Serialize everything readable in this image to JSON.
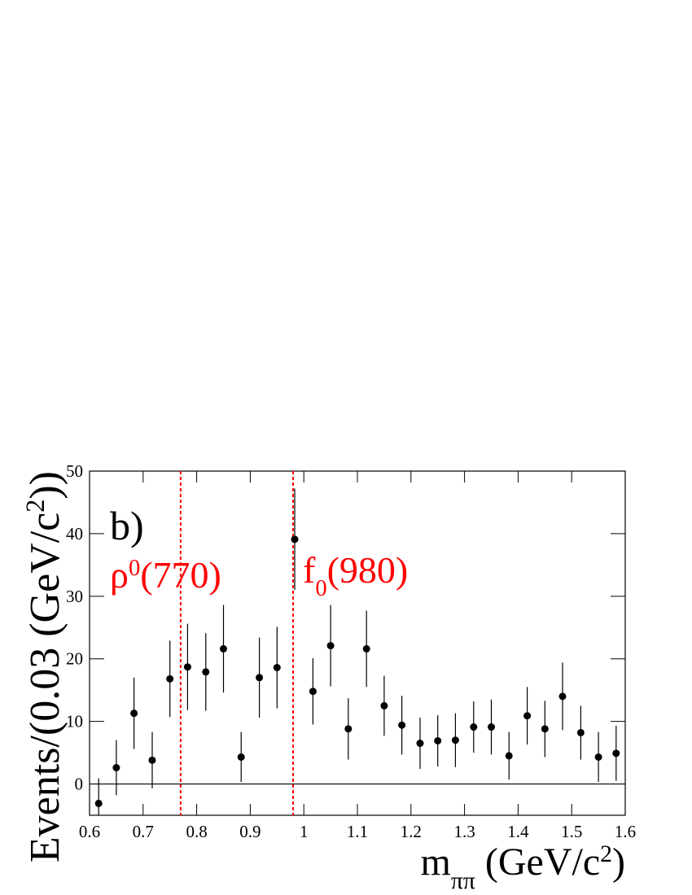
{
  "chart_data": {
    "type": "errorbar",
    "x": [
      0.617,
      0.65,
      0.683,
      0.717,
      0.75,
      0.783,
      0.817,
      0.85,
      0.883,
      0.917,
      0.95,
      0.983,
      1.017,
      1.05,
      1.083,
      1.117,
      1.15,
      1.183,
      1.217,
      1.25,
      1.283,
      1.317,
      1.35,
      1.383,
      1.417,
      1.45,
      1.483,
      1.517,
      1.55,
      1.583
    ],
    "values": [
      -3.1,
      2.6,
      11.3,
      3.8,
      16.8,
      18.7,
      17.9,
      21.6,
      4.3,
      17.0,
      18.6,
      39.1,
      14.8,
      22.1,
      8.8,
      21.6,
      12.5,
      9.4,
      6.5,
      6.9,
      7.0,
      9.1,
      9.1,
      4.5,
      10.9,
      8.8,
      14.0,
      8.2,
      4.3,
      4.9
    ],
    "errors": [
      4.0,
      4.4,
      5.7,
      4.5,
      6.1,
      6.9,
      6.2,
      7.0,
      4.0,
      6.4,
      6.5,
      8.1,
      5.3,
      6.5,
      4.9,
      6.1,
      4.8,
      4.7,
      4.1,
      4.1,
      4.3,
      4.1,
      4.4,
      3.8,
      4.6,
      4.5,
      5.4,
      4.3,
      4.0,
      4.4
    ],
    "color": "#000000",
    "xlim": [
      0.6,
      1.6
    ],
    "ylim": [
      -5,
      50
    ],
    "xticks": [
      0.6,
      0.7,
      0.8,
      0.9,
      1,
      1.1,
      1.2,
      1.3,
      1.4,
      1.5,
      1.6
    ],
    "yticks": [
      0,
      10,
      20,
      30,
      40,
      50
    ],
    "zero_line": true,
    "x_label": [
      {
        "text": "m"
      },
      {
        "text": "ππ",
        "sub": true
      },
      {
        "text": " (GeV/c"
      },
      {
        "text": "2",
        "sup": true
      },
      {
        "text": ")"
      }
    ],
    "y_label": [
      {
        "text": "Events/(0.03 (GeV/c"
      },
      {
        "text": "2",
        "sup": true
      },
      {
        "text": "))"
      }
    ],
    "panel_label": "b)",
    "reference_lines": [
      {
        "x": 0.77,
        "color": "#ff0000",
        "label": [
          {
            "text": "ρ"
          },
          {
            "text": "0",
            "sup": true
          },
          {
            "text": "(770)"
          }
        ]
      },
      {
        "x": 0.98,
        "color": "#ff0000",
        "label": [
          {
            "text": "f"
          },
          {
            "text": "0",
            "sub": true
          },
          {
            "text": "(980)"
          }
        ]
      }
    ]
  }
}
